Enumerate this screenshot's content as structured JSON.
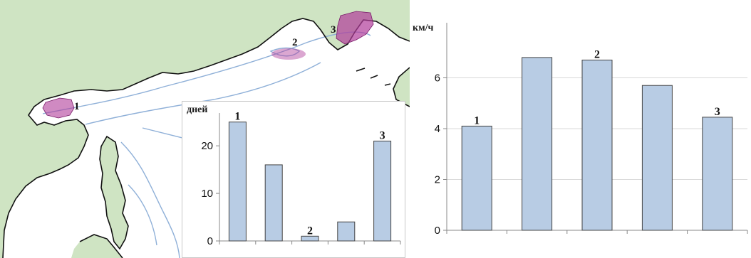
{
  "map": {
    "region_labels": [
      "1",
      "2",
      "3"
    ],
    "colors": {
      "land": "#cfe4c3",
      "sea": "#ffffff",
      "coast": "#111111",
      "isobath": "#8fb0d8",
      "region_fill": "#b03c9a"
    }
  },
  "chart_data": [
    {
      "type": "bar",
      "unit_label": "дней",
      "categories": [
        "1",
        "",
        "2",
        "",
        "3"
      ],
      "values": [
        25,
        16,
        1,
        4,
        21
      ],
      "ylim": [
        0,
        26
      ],
      "yticks": [
        0,
        10,
        20
      ],
      "bar_labels": [
        "1",
        "",
        "2",
        "",
        "3"
      ],
      "grid": false,
      "colors": {
        "bar_fill": "#b8cce4",
        "bar_stroke": "#444444",
        "axis": "#888888"
      }
    },
    {
      "type": "bar",
      "unit_label": "км/ч",
      "categories": [
        "1",
        "",
        "2",
        "",
        "3"
      ],
      "values": [
        4.1,
        6.8,
        6.7,
        5.7,
        4.45
      ],
      "ylim": [
        0,
        8
      ],
      "yticks": [
        0,
        2,
        4,
        6
      ],
      "bar_labels": [
        "1",
        "",
        "2",
        "",
        "3"
      ],
      "grid": true,
      "colors": {
        "bar_fill": "#b8cce4",
        "bar_stroke": "#444444",
        "axis": "#888888",
        "grid": "#d9d9d9"
      }
    }
  ]
}
